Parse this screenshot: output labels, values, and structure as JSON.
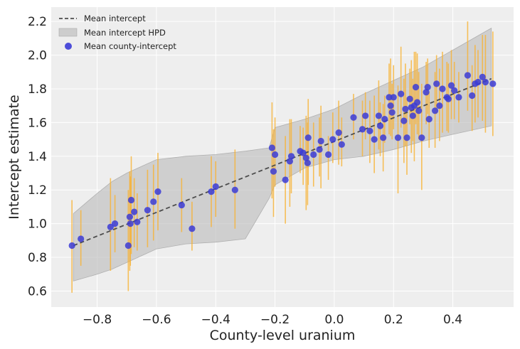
{
  "chart_data": {
    "type": "scatter",
    "xlabel": "County-level uranium",
    "ylabel": "Intercept estimate",
    "xlim": [
      -0.955,
      0.605
    ],
    "ylim": [
      0.505,
      2.285
    ],
    "xticks": [
      -0.8,
      -0.6,
      -0.4,
      -0.2,
      0.0,
      0.2,
      0.4
    ],
    "xtick_labels": [
      "−0.8",
      "−0.6",
      "−0.4",
      "−0.2",
      "0.0",
      "0.2",
      "0.4"
    ],
    "yticks": [
      0.6,
      0.8,
      1.0,
      1.2,
      1.4,
      1.6,
      1.8,
      2.0,
      2.2
    ],
    "ytick_labels": [
      "0.6",
      "0.8",
      "1.0",
      "1.2",
      "1.4",
      "1.6",
      "1.8",
      "2.0",
      "2.2"
    ],
    "grid": true,
    "legend_position": "top-left",
    "legend": [
      {
        "label": "Mean intercept",
        "kind": "dashed-line"
      },
      {
        "label": "Mean intercept HPD",
        "kind": "band"
      },
      {
        "label": "Mean county-intercept",
        "kind": "marker"
      }
    ],
    "colors": {
      "point": "#3b3bd6",
      "errorbar": "#f7b232",
      "line": "#4d4d4d",
      "band": "#bfbfbf",
      "background": "#eeeeee",
      "grid": "#ffffff"
    },
    "mean_line": {
      "x": [
        -0.88,
        0.53
      ],
      "y": [
        0.87,
        1.86
      ]
    },
    "hpd_band": {
      "x": [
        -0.88,
        -0.8,
        -0.75,
        -0.7,
        -0.6,
        -0.5,
        -0.4,
        -0.3,
        -0.22,
        -0.2,
        -0.1,
        0.0,
        0.1,
        0.2,
        0.3,
        0.4,
        0.53
      ],
      "upper": [
        1.06,
        1.18,
        1.25,
        1.3,
        1.38,
        1.4,
        1.41,
        1.43,
        1.45,
        1.57,
        1.62,
        1.68,
        1.77,
        1.85,
        1.93,
        2.03,
        2.16
      ],
      "lower": [
        0.66,
        0.7,
        0.73,
        0.77,
        0.85,
        0.88,
        0.89,
        0.91,
        1.15,
        1.23,
        1.33,
        1.38,
        1.4,
        1.44,
        1.49,
        1.53,
        1.58
      ]
    },
    "series": [
      {
        "name": "Mean county-intercept",
        "points": [
          [
            -0.885,
            0.87,
            0.59,
            1.14
          ],
          [
            -0.855,
            0.91,
            0.75,
            1.08
          ],
          [
            -0.755,
            0.98,
            0.72,
            1.27
          ],
          [
            -0.74,
            1.0,
            0.83,
            1.17
          ],
          [
            -0.695,
            0.87,
            0.6,
            1.2
          ],
          [
            -0.69,
            1.04,
            0.72,
            1.31
          ],
          [
            -0.688,
            1.0,
            0.75,
            1.28
          ],
          [
            -0.685,
            1.14,
            0.82,
            1.4
          ],
          [
            -0.675,
            1.07,
            0.86,
            1.27
          ],
          [
            -0.665,
            1.01,
            0.84,
            1.18
          ],
          [
            -0.63,
            1.08,
            0.86,
            1.32
          ],
          [
            -0.61,
            1.13,
            0.9,
            1.35
          ],
          [
            -0.595,
            1.19,
            0.96,
            1.42
          ],
          [
            -0.515,
            1.11,
            0.95,
            1.27
          ],
          [
            -0.48,
            0.97,
            0.84,
            1.13
          ],
          [
            -0.415,
            1.19,
            0.98,
            1.4
          ],
          [
            -0.4,
            1.22,
            1.04,
            1.37
          ],
          [
            -0.335,
            1.2,
            0.97,
            1.44
          ],
          [
            -0.21,
            1.45,
            1.15,
            1.72
          ],
          [
            -0.205,
            1.31,
            1.04,
            1.56
          ],
          [
            -0.2,
            1.41,
            1.22,
            1.63
          ],
          [
            -0.165,
            1.26,
            1.0,
            1.52
          ],
          [
            -0.15,
            1.37,
            1.1,
            1.62
          ],
          [
            -0.145,
            1.4,
            1.18,
            1.62
          ],
          [
            -0.115,
            1.43,
            1.3,
            1.58
          ],
          [
            -0.105,
            1.42,
            1.23,
            1.57
          ],
          [
            -0.095,
            1.39,
            1.08,
            1.64
          ],
          [
            -0.09,
            1.36,
            1.11,
            1.6
          ],
          [
            -0.088,
            1.51,
            1.23,
            1.74
          ],
          [
            -0.07,
            1.41,
            1.22,
            1.6
          ],
          [
            -0.05,
            1.44,
            1.28,
            1.63
          ],
          [
            -0.045,
            1.49,
            1.21,
            1.7
          ],
          [
            -0.02,
            1.41,
            1.26,
            1.52
          ],
          [
            -0.005,
            1.5,
            1.36,
            1.66
          ],
          [
            0.015,
            1.54,
            1.35,
            1.73
          ],
          [
            0.025,
            1.47,
            1.34,
            1.63
          ],
          [
            0.065,
            1.63,
            1.5,
            1.77
          ],
          [
            0.095,
            1.56,
            1.4,
            1.73
          ],
          [
            0.105,
            1.64,
            1.5,
            1.78
          ],
          [
            0.12,
            1.55,
            1.36,
            1.73
          ],
          [
            0.135,
            1.5,
            1.3,
            1.76
          ],
          [
            0.15,
            1.64,
            1.44,
            1.85
          ],
          [
            0.155,
            1.58,
            1.4,
            1.72
          ],
          [
            0.165,
            1.51,
            1.31,
            1.71
          ],
          [
            0.17,
            1.62,
            1.48,
            1.76
          ],
          [
            0.185,
            1.75,
            1.53,
            1.95
          ],
          [
            0.19,
            1.7,
            1.52,
            1.98
          ],
          [
            0.195,
            1.66,
            1.5,
            1.83
          ],
          [
            0.2,
            1.75,
            1.56,
            1.94
          ],
          [
            0.215,
            1.51,
            1.18,
            1.82
          ],
          [
            0.225,
            1.77,
            1.57,
            2.05
          ],
          [
            0.235,
            1.61,
            1.36,
            1.86
          ],
          [
            0.24,
            1.68,
            1.46,
            1.95
          ],
          [
            0.245,
            1.51,
            1.29,
            1.75
          ],
          [
            0.255,
            1.74,
            1.59,
            1.92
          ],
          [
            0.26,
            1.69,
            1.42,
            1.97
          ],
          [
            0.265,
            1.64,
            1.49,
            1.86
          ],
          [
            0.27,
            1.7,
            1.37,
            2.02
          ],
          [
            0.275,
            1.81,
            1.59,
            2.02
          ],
          [
            0.28,
            1.72,
            1.53,
            2.01
          ],
          [
            0.285,
            1.67,
            1.5,
            1.9
          ],
          [
            0.295,
            1.51,
            1.2,
            1.83
          ],
          [
            0.31,
            1.78,
            1.59,
            1.96
          ],
          [
            0.315,
            1.81,
            1.65,
            1.98
          ],
          [
            0.32,
            1.62,
            1.45,
            1.78
          ],
          [
            0.34,
            1.67,
            1.45,
            1.9
          ],
          [
            0.345,
            1.83,
            1.65,
            2.0
          ],
          [
            0.355,
            1.7,
            1.49,
            1.92
          ],
          [
            0.365,
            1.8,
            1.54,
            2.02
          ],
          [
            0.38,
            1.75,
            1.55,
            1.96
          ],
          [
            0.385,
            1.74,
            1.54,
            1.95
          ],
          [
            0.395,
            1.82,
            1.62,
            2.03
          ],
          [
            0.405,
            1.79,
            1.62,
            1.96
          ],
          [
            0.42,
            1.75,
            1.6,
            1.9
          ],
          [
            0.45,
            1.88,
            1.67,
            2.2
          ],
          [
            0.465,
            1.76,
            1.55,
            1.94
          ],
          [
            0.475,
            1.83,
            1.6,
            2.06
          ],
          [
            0.485,
            1.84,
            1.63,
            2.03
          ],
          [
            0.5,
            1.87,
            1.61,
            2.12
          ],
          [
            0.51,
            1.84,
            1.54,
            2.12
          ],
          [
            0.535,
            1.83,
            1.52,
            2.14
          ]
        ]
      }
    ]
  }
}
